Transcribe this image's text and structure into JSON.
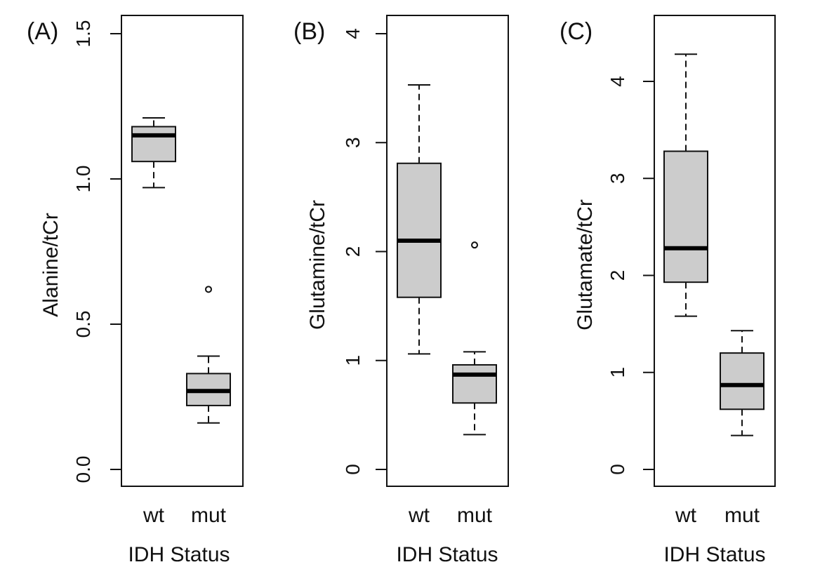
{
  "chart_data": [
    {
      "type": "box",
      "panel_label": "(A)",
      "ylabel": "Alanine/tCr",
      "xlabel": "IDH Status",
      "ylim": [
        0,
        1.5
      ],
      "yticks": [
        0,
        0.5,
        1.0,
        1.5
      ],
      "ytick_labels": [
        "0.0",
        "0.5",
        "1.0",
        "1.5"
      ],
      "categories": [
        "wt",
        "mut"
      ],
      "box_color": "#cccccc",
      "boxes": [
        {
          "name": "wt",
          "min": 0.97,
          "q1": 1.06,
          "median": 1.15,
          "q3": 1.18,
          "max": 1.21,
          "outliers": []
        },
        {
          "name": "mut",
          "min": 0.16,
          "q1": 0.22,
          "median": 0.27,
          "q3": 0.33,
          "max": 0.39,
          "outliers": [
            0.62
          ]
        }
      ]
    },
    {
      "type": "box",
      "panel_label": "(B)",
      "ylabel": "Glutamine/tCr",
      "xlabel": "IDH Status",
      "ylim": [
        0,
        4
      ],
      "yticks": [
        0,
        1,
        2,
        3,
        4
      ],
      "ytick_labels": [
        "0",
        "1",
        "2",
        "3",
        "4"
      ],
      "categories": [
        "wt",
        "mut"
      ],
      "box_color": "#cccccc",
      "boxes": [
        {
          "name": "wt",
          "min": 1.06,
          "q1": 1.58,
          "median": 2.1,
          "q3": 2.81,
          "max": 3.53,
          "outliers": []
        },
        {
          "name": "mut",
          "min": 0.32,
          "q1": 0.61,
          "median": 0.87,
          "q3": 0.96,
          "max": 1.08,
          "outliers": [
            2.06
          ]
        }
      ]
    },
    {
      "type": "box",
      "panel_label": "(C)",
      "ylabel": "Glutamate/tCr",
      "xlabel": "IDH Status",
      "ylim": [
        0,
        4.5
      ],
      "yticks": [
        0,
        1,
        2,
        3,
        4
      ],
      "ytick_labels": [
        "0",
        "1",
        "2",
        "3",
        "4"
      ],
      "categories": [
        "wt",
        "mut"
      ],
      "box_color": "#cccccc",
      "boxes": [
        {
          "name": "wt",
          "min": 1.58,
          "q1": 1.93,
          "median": 2.28,
          "q3": 3.28,
          "max": 4.28,
          "outliers": []
        },
        {
          "name": "mut",
          "min": 0.35,
          "q1": 0.62,
          "median": 0.87,
          "q3": 1.2,
          "max": 1.43,
          "outliers": []
        }
      ]
    }
  ]
}
